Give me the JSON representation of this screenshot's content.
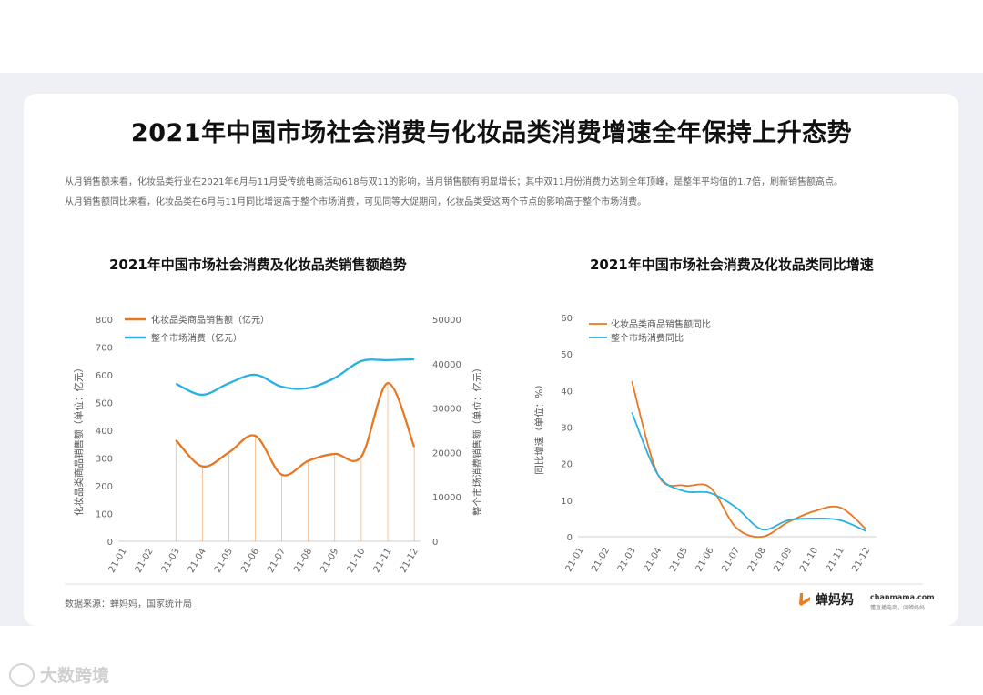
{
  "main_title": "2021年中国市场社会消费与化妆品类消费增速全年保持上升态势",
  "description": [
    "从月销售额来看，化妆品类行业在2021年6月与11月受传统电商活动618与双11的影响，当月销售额有明显增长；其中双11月份消费力达到全年顶峰，是整年平均值的1.7倍，刷新销售额高点。",
    "从月销售额同比来看，化妆品类在6月与11月同比增速高于整个市场消费，可见同等大促期间，化妆品类受这两个节点的影响高于整个市场消费。"
  ],
  "colors": {
    "orange": "#e87722",
    "blue": "#29b0e2"
  },
  "chart_data": [
    {
      "type": "line",
      "title": "2021年中国市场社会消费及化妆品类销售额趋势",
      "categories": [
        "21-01",
        "21-02",
        "21-03",
        "21-04",
        "21-05",
        "21-06",
        "21-07",
        "21-08",
        "21-09",
        "21-10",
        "21-11",
        "21-12"
      ],
      "series": [
        {
          "name": "化妆品类商品销售额（亿元）",
          "axis": "left",
          "color": "#e87722",
          "values": [
            null,
            null,
            365,
            270,
            320,
            380,
            240,
            290,
            315,
            305,
            570,
            340
          ]
        },
        {
          "name": "整个市场消费（亿元）",
          "axis": "right",
          "color": "#29b0e2",
          "values": [
            null,
            null,
            35500,
            33000,
            35600,
            37500,
            34800,
            34500,
            36800,
            40600,
            40800,
            41000
          ]
        }
      ],
      "ylabel_left": "化妆品类商品销售额（单位：亿元）",
      "ylabel_right": "整个市场消费销售额（单位：亿元）",
      "ylim_left": [
        0,
        800
      ],
      "yticks_left": [
        "0",
        "100",
        "200",
        "300",
        "400",
        "500",
        "600",
        "700",
        "800"
      ],
      "ylim_right": [
        0,
        50000
      ],
      "yticks_right": [
        "0",
        "10000",
        "20000",
        "30000",
        "40000",
        "50000"
      ],
      "legend": "top-left"
    },
    {
      "type": "line",
      "title": "2021年中国市场社会消费及化妆品类同比增速",
      "categories": [
        "21-01",
        "21-02",
        "21-03",
        "21-04",
        "21-05",
        "21-06",
        "21-07",
        "21-08",
        "21-09",
        "21-10",
        "21-11",
        "21-12"
      ],
      "series": [
        {
          "name": "化妆品类商品销售额同比",
          "color": "#e87722",
          "values": [
            null,
            null,
            42.5,
            17,
            14,
            13.5,
            2.5,
            0,
            4,
            7,
            8,
            2
          ]
        },
        {
          "name": "整个市场消费同比",
          "color": "#29b0e2",
          "values": [
            null,
            null,
            34,
            17,
            12.5,
            12,
            8,
            2,
            4.5,
            5,
            4.5,
            1.5
          ]
        }
      ],
      "ylabel": "同比增速（单位：%）",
      "ylim": [
        0,
        60
      ],
      "yticks": [
        "0",
        "10",
        "20",
        "30",
        "40",
        "50",
        "60"
      ],
      "legend": "top-left"
    }
  ],
  "footer": {
    "source": "数据来源：蝉妈妈，国家统计局",
    "logo_name": "蝉妈妈",
    "logo_url": "chanmama.com",
    "logo_tagline": "懂直播电商，问蝉妈妈"
  },
  "watermark": "大数跨境"
}
